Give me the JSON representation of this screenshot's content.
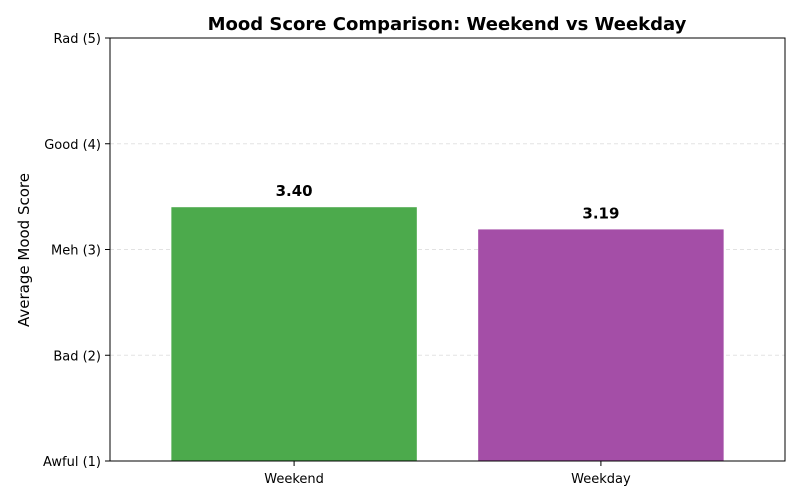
{
  "chart_data": {
    "type": "bar",
    "title": "Mood Score Comparison: Weekend vs Weekday",
    "xlabel": "",
    "ylabel": "Average Mood Score",
    "categories": [
      "Weekend",
      "Weekday"
    ],
    "values": [
      3.4,
      3.19
    ],
    "data_labels": [
      "3.40",
      "3.19"
    ],
    "colors": [
      "#4caa4c",
      "#a44ea7"
    ],
    "ylim": [
      1,
      5
    ],
    "yticks": [
      {
        "value": 1,
        "label": "Awful (1)"
      },
      {
        "value": 2,
        "label": "Bad (2)"
      },
      {
        "value": 3,
        "label": "Meh (3)"
      },
      {
        "value": 4,
        "label": "Good (4)"
      },
      {
        "value": 5,
        "label": "Rad (5)"
      }
    ],
    "grid": true,
    "legend": false
  }
}
